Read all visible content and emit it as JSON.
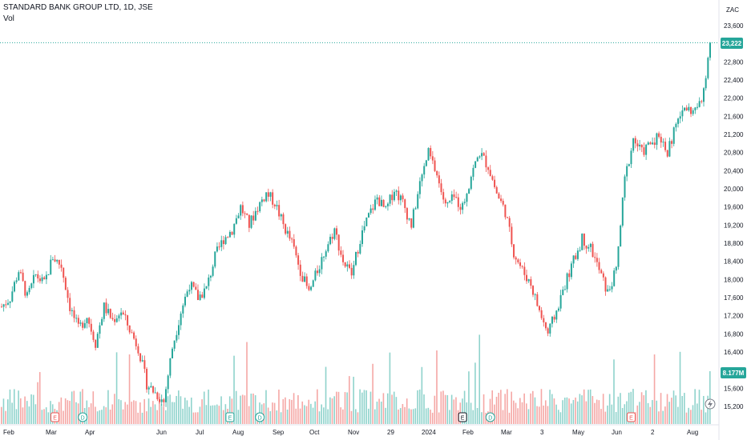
{
  "header": {
    "title": "STANDARD BANK GROUP LTD, 1D, JSE",
    "vol_label": "Vol",
    "currency": "ZAC"
  },
  "colors": {
    "up": "#26a69a",
    "down": "#ef5350",
    "up_vol": "#8fd3cc",
    "down_vol": "#f5a7a5",
    "price_line": "#26a69a",
    "axis_text": "#131722"
  },
  "chart_data": {
    "type": "candlestick",
    "ylim": [
      15000,
      23800
    ],
    "y_ticks": [
      15200,
      15600,
      16000,
      16400,
      16800,
      17200,
      17600,
      18000,
      18400,
      18800,
      19200,
      19600,
      20000,
      20400,
      20800,
      21200,
      21600,
      22000,
      22400,
      22800,
      23200,
      23600
    ],
    "y_tick_labels": [
      "15,200",
      "15,600",
      "16,000",
      "16,400",
      "16,800",
      "17,200",
      "17,600",
      "18,000",
      "18,400",
      "18,800",
      "19,200",
      "19,600",
      "20,000",
      "20,400",
      "20,800",
      "21,200",
      "21,600",
      "22,000",
      "22,400",
      "22,800",
      "",
      "23,600"
    ],
    "x_labels": [
      "Feb",
      "Mar",
      "Apr",
      "Jun",
      "Jul",
      "Aug",
      "Sep",
      "Oct",
      "Nov",
      "29",
      "2024",
      "Feb",
      "Mar",
      "3",
      "May",
      "Jun",
      "2",
      "Aug"
    ],
    "last_price": 23222,
    "last_price_label": "23,222",
    "volume_label": "8.177M",
    "series": [
      {
        "name": "price",
        "points": [
          {
            "t": 0,
            "v": 17400
          },
          {
            "t": 4,
            "v": 17600
          },
          {
            "t": 8,
            "v": 18200
          },
          {
            "t": 12,
            "v": 17600
          },
          {
            "t": 16,
            "v": 18100
          },
          {
            "t": 20,
            "v": 17900
          },
          {
            "t": 24,
            "v": 18500
          },
          {
            "t": 28,
            "v": 18300
          },
          {
            "t": 32,
            "v": 17400
          },
          {
            "t": 36,
            "v": 16900
          },
          {
            "t": 40,
            "v": 17200
          },
          {
            "t": 44,
            "v": 16600
          },
          {
            "t": 48,
            "v": 17400
          },
          {
            "t": 52,
            "v": 17100
          },
          {
            "t": 56,
            "v": 17300
          },
          {
            "t": 60,
            "v": 16900
          },
          {
            "t": 64,
            "v": 16500
          },
          {
            "t": 68,
            "v": 15700
          },
          {
            "t": 72,
            "v": 15500
          },
          {
            "t": 76,
            "v": 15300
          },
          {
            "t": 80,
            "v": 16500
          },
          {
            "t": 84,
            "v": 17300
          },
          {
            "t": 88,
            "v": 17900
          },
          {
            "t": 92,
            "v": 17600
          },
          {
            "t": 96,
            "v": 17800
          },
          {
            "t": 100,
            "v": 18500
          },
          {
            "t": 104,
            "v": 18900
          },
          {
            "t": 108,
            "v": 19100
          },
          {
            "t": 112,
            "v": 19600
          },
          {
            "t": 116,
            "v": 19200
          },
          {
            "t": 120,
            "v": 19600
          },
          {
            "t": 124,
            "v": 19900
          },
          {
            "t": 128,
            "v": 19700
          },
          {
            "t": 132,
            "v": 19200
          },
          {
            "t": 136,
            "v": 18800
          },
          {
            "t": 140,
            "v": 18200
          },
          {
            "t": 144,
            "v": 17700
          },
          {
            "t": 148,
            "v": 18200
          },
          {
            "t": 152,
            "v": 18700
          },
          {
            "t": 156,
            "v": 19100
          },
          {
            "t": 160,
            "v": 18400
          },
          {
            "t": 164,
            "v": 18100
          },
          {
            "t": 168,
            "v": 18900
          },
          {
            "t": 172,
            "v": 19400
          },
          {
            "t": 176,
            "v": 19800
          },
          {
            "t": 180,
            "v": 19500
          },
          {
            "t": 184,
            "v": 20000
          },
          {
            "t": 188,
            "v": 19700
          },
          {
            "t": 192,
            "v": 19200
          },
          {
            "t": 196,
            "v": 20100
          },
          {
            "t": 200,
            "v": 20800
          },
          {
            "t": 204,
            "v": 20300
          },
          {
            "t": 208,
            "v": 19600
          },
          {
            "t": 212,
            "v": 19800
          },
          {
            "t": 216,
            "v": 19600
          },
          {
            "t": 220,
            "v": 20300
          },
          {
            "t": 224,
            "v": 20800
          },
          {
            "t": 228,
            "v": 20500
          },
          {
            "t": 232,
            "v": 19900
          },
          {
            "t": 236,
            "v": 19500
          },
          {
            "t": 240,
            "v": 18600
          },
          {
            "t": 244,
            "v": 18200
          },
          {
            "t": 248,
            "v": 17900
          },
          {
            "t": 252,
            "v": 17300
          },
          {
            "t": 256,
            "v": 16800
          },
          {
            "t": 260,
            "v": 17300
          },
          {
            "t": 264,
            "v": 17900
          },
          {
            "t": 268,
            "v": 18400
          },
          {
            "t": 272,
            "v": 18900
          },
          {
            "t": 276,
            "v": 18700
          },
          {
            "t": 280,
            "v": 18200
          },
          {
            "t": 284,
            "v": 17700
          },
          {
            "t": 288,
            "v": 18200
          },
          {
            "t": 292,
            "v": 20200
          },
          {
            "t": 296,
            "v": 21100
          },
          {
            "t": 300,
            "v": 20800
          },
          {
            "t": 304,
            "v": 21000
          },
          {
            "t": 308,
            "v": 21200
          },
          {
            "t": 312,
            "v": 20800
          },
          {
            "t": 316,
            "v": 21400
          },
          {
            "t": 320,
            "v": 21800
          },
          {
            "t": 324,
            "v": 21700
          },
          {
            "t": 328,
            "v": 21900
          },
          {
            "t": 332,
            "v": 23222
          }
        ]
      }
    ],
    "event_markers": [
      {
        "type": "E",
        "t": 25,
        "color": "#ef5350"
      },
      {
        "type": "D",
        "t": 38,
        "color": "#26a69a"
      },
      {
        "type": "E",
        "t": 107,
        "color": "#26a69a"
      },
      {
        "type": "D",
        "t": 121,
        "color": "#26a69a"
      },
      {
        "type": "E",
        "t": 216,
        "color": "#131722"
      },
      {
        "type": "D",
        "t": 229,
        "color": "#26a69a"
      },
      {
        "type": "E",
        "t": 295,
        "color": "#ef5350"
      }
    ]
  }
}
